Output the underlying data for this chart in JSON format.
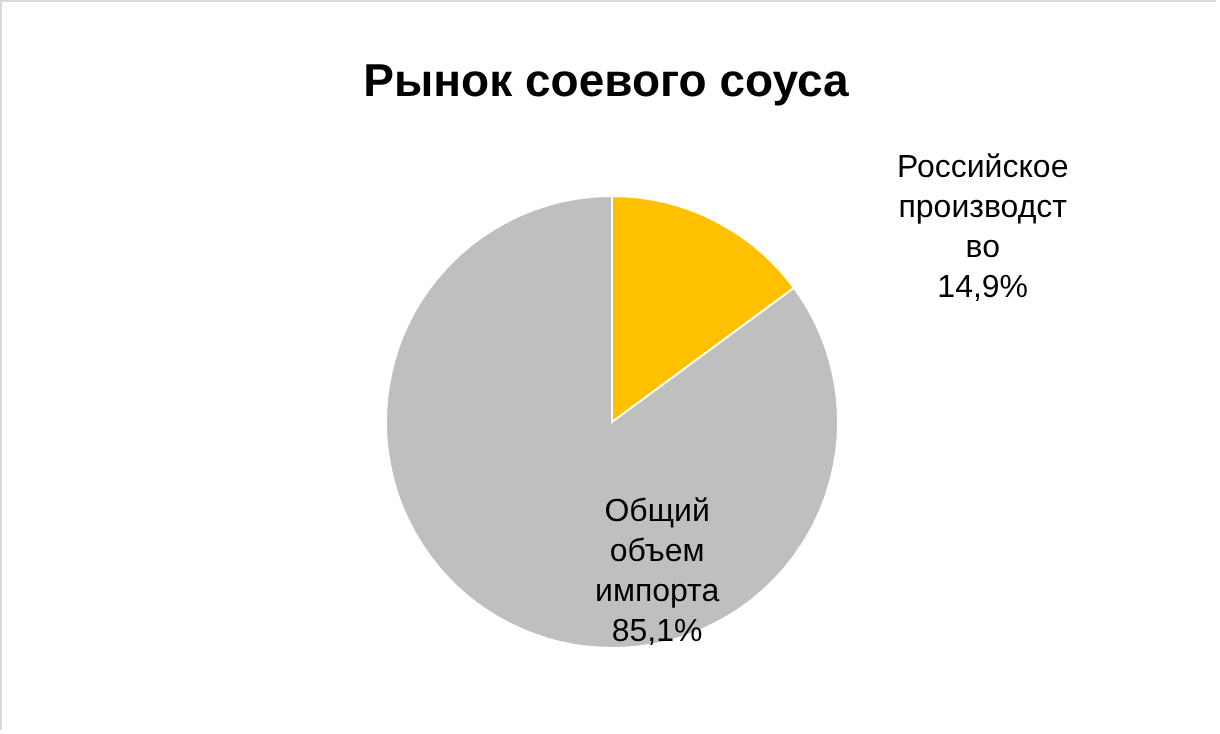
{
  "chart_data": {
    "type": "pie",
    "title": "Рынок соевого соуса",
    "categories": [
      "Российское производство",
      "Общий объем импорта"
    ],
    "values": [
      14.9,
      85.1
    ],
    "colors": [
      "#ffc000",
      "#bfbfbf"
    ],
    "value_labels": [
      "14,9%",
      "85,1%"
    ]
  }
}
